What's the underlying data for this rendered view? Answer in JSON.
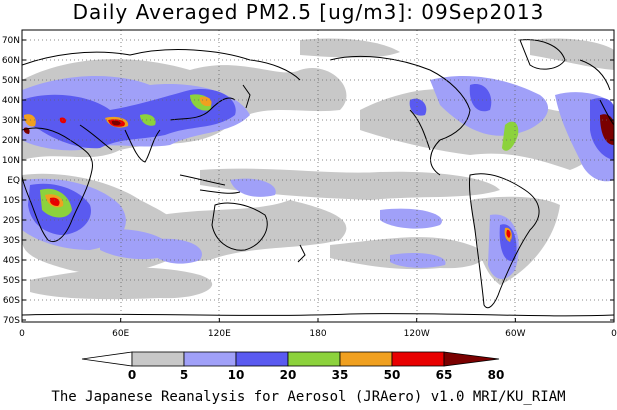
{
  "title": "Daily Averaged PM2.5 [ug/m3]: 09Sep2013",
  "lat_labels": [
    "70N",
    "60N",
    "50N",
    "40N",
    "30N",
    "20N",
    "10N",
    "EQ",
    "10S",
    "20S",
    "30S",
    "40S",
    "50S",
    "60S",
    "70S"
  ],
  "lon_labels": [
    "0",
    "60E",
    "120E",
    "180",
    "120W",
    "60W",
    "0"
  ],
  "legend": {
    "ticks": [
      "0",
      "5",
      "10",
      "20",
      "35",
      "50",
      "65",
      "80"
    ],
    "colors": [
      "#ffffff",
      "#c8c8c8",
      "#a0a0f8",
      "#5a5af0",
      "#8cd23c",
      "#f0a020",
      "#e80000",
      "#7a0000"
    ]
  },
  "footer": "The Japanese Reanalysis for Aerosol (JRAero) v1.0 MRI/KU_RIAM"
}
